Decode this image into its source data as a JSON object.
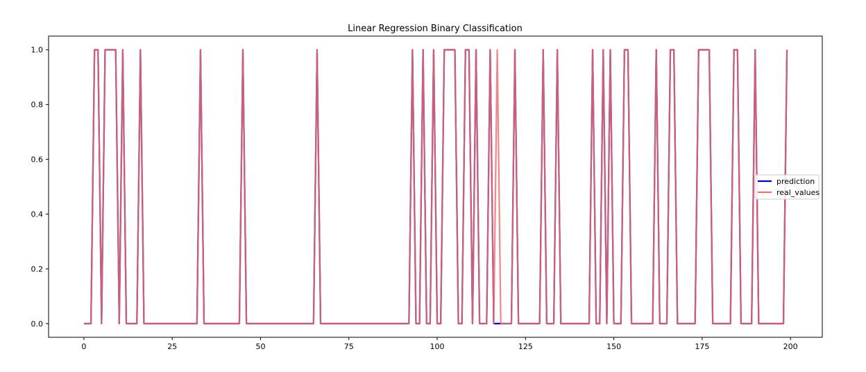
{
  "chart_data": {
    "type": "line",
    "title": "Linear Regression Binary Classification",
    "xlabel": "",
    "ylabel": "",
    "xlim": [
      -10,
      209
    ],
    "ylim": [
      -0.05,
      1.05
    ],
    "xticks": [
      0,
      25,
      50,
      75,
      100,
      125,
      150,
      175,
      200
    ],
    "yticks": [
      0.0,
      0.2,
      0.4,
      0.6,
      0.8,
      1.0
    ],
    "xtick_labels": [
      "0",
      "25",
      "50",
      "75",
      "100",
      "125",
      "150",
      "175",
      "200"
    ],
    "ytick_labels": [
      "0.0",
      "0.2",
      "0.4",
      "0.6",
      "0.8",
      "1.0"
    ],
    "grid": false,
    "legend_position": "center-right",
    "x": [
      0,
      1,
      2,
      3,
      4,
      5,
      6,
      7,
      8,
      9,
      10,
      11,
      12,
      13,
      14,
      15,
      16,
      17,
      18,
      19,
      20,
      21,
      22,
      23,
      24,
      25,
      26,
      27,
      28,
      29,
      30,
      31,
      32,
      33,
      34,
      35,
      36,
      37,
      38,
      39,
      40,
      41,
      42,
      43,
      44,
      45,
      46,
      47,
      48,
      49,
      50,
      51,
      52,
      53,
      54,
      55,
      56,
      57,
      58,
      59,
      60,
      61,
      62,
      63,
      64,
      65,
      66,
      67,
      68,
      69,
      70,
      71,
      72,
      73,
      74,
      75,
      76,
      77,
      78,
      79,
      80,
      81,
      82,
      83,
      84,
      85,
      86,
      87,
      88,
      89,
      90,
      91,
      92,
      93,
      94,
      95,
      96,
      97,
      98,
      99,
      100,
      101,
      102,
      103,
      104,
      105,
      106,
      107,
      108,
      109,
      110,
      111,
      112,
      113,
      114,
      115,
      116,
      117,
      118,
      119,
      120,
      121,
      122,
      123,
      124,
      125,
      126,
      127,
      128,
      129,
      130,
      131,
      132,
      133,
      134,
      135,
      136,
      137,
      138,
      139,
      140,
      141,
      142,
      143,
      144,
      145,
      146,
      147,
      148,
      149,
      150,
      151,
      152,
      153,
      154,
      155,
      156,
      157,
      158,
      159,
      160,
      161,
      162,
      163,
      164,
      165,
      166,
      167,
      168,
      169,
      170,
      171,
      172,
      173,
      174,
      175,
      176,
      177,
      178,
      179,
      180,
      181,
      182,
      183,
      184,
      185,
      186,
      187,
      188,
      189,
      190,
      191,
      192,
      193,
      194,
      195,
      196,
      197,
      198,
      199
    ],
    "series": [
      {
        "name": "prediction",
        "color": "#0000bb",
        "values": [
          0,
          0,
          0,
          1,
          1,
          0,
          1,
          1,
          1,
          1,
          0,
          1,
          0,
          0,
          0,
          0,
          1,
          0,
          0,
          0,
          0,
          0,
          0,
          0,
          0,
          0,
          0,
          0,
          0,
          0,
          0,
          0,
          0,
          1,
          0,
          0,
          0,
          0,
          0,
          0,
          0,
          0,
          0,
          0,
          0,
          1,
          0,
          0,
          0,
          0,
          0,
          0,
          0,
          0,
          0,
          0,
          0,
          0,
          0,
          0,
          0,
          0,
          0,
          0,
          0,
          0,
          1,
          0,
          0,
          0,
          0,
          0,
          0,
          0,
          0,
          0,
          0,
          0,
          0,
          0,
          0,
          0,
          0,
          0,
          0,
          0,
          0,
          0,
          0,
          0,
          0,
          0,
          0,
          1,
          0,
          0,
          1,
          0,
          0,
          1,
          0,
          0,
          1,
          1,
          1,
          1,
          0,
          0,
          1,
          1,
          0,
          1,
          0,
          0,
          0,
          1,
          0,
          0,
          0,
          0,
          0,
          0,
          1,
          0,
          0,
          0,
          0,
          0,
          0,
          0,
          1,
          0,
          0,
          0,
          1,
          0,
          0,
          0,
          0,
          0,
          0,
          0,
          0,
          0,
          1,
          0,
          0,
          1,
          0,
          1,
          0,
          0,
          0,
          1,
          1,
          0,
          0,
          0,
          0,
          0,
          0,
          0,
          1,
          0,
          0,
          0,
          1,
          1,
          0,
          0,
          0,
          0,
          0,
          0,
          1,
          1,
          1,
          1,
          0,
          0,
          0,
          0,
          0,
          0,
          1,
          1,
          0,
          0,
          0,
          0,
          1,
          0,
          0,
          0,
          0,
          0,
          0,
          0,
          0,
          1
        ]
      },
      {
        "name": "real_values",
        "color": "#f07070",
        "values": [
          0,
          0,
          0,
          1,
          1,
          0,
          1,
          1,
          1,
          1,
          0,
          1,
          0,
          0,
          0,
          0,
          1,
          0,
          0,
          0,
          0,
          0,
          0,
          0,
          0,
          0,
          0,
          0,
          0,
          0,
          0,
          0,
          0,
          1,
          0,
          0,
          0,
          0,
          0,
          0,
          0,
          0,
          0,
          0,
          0,
          1,
          0,
          0,
          0,
          0,
          0,
          0,
          0,
          0,
          0,
          0,
          0,
          0,
          0,
          0,
          0,
          0,
          0,
          0,
          0,
          0,
          1,
          0,
          0,
          0,
          0,
          0,
          0,
          0,
          0,
          0,
          0,
          0,
          0,
          0,
          0,
          0,
          0,
          0,
          0,
          0,
          0,
          0,
          0,
          0,
          0,
          0,
          0,
          1,
          0,
          0,
          1,
          0,
          0,
          1,
          0,
          0,
          1,
          1,
          1,
          1,
          0,
          0,
          1,
          1,
          0,
          1,
          0,
          0,
          0,
          1,
          0,
          1,
          0,
          0,
          0,
          0,
          1,
          0,
          0,
          0,
          0,
          0,
          0,
          0,
          1,
          0,
          0,
          0,
          1,
          0,
          0,
          0,
          0,
          0,
          0,
          0,
          0,
          0,
          1,
          0,
          0,
          1,
          0,
          1,
          0,
          0,
          0,
          1,
          1,
          0,
          0,
          0,
          0,
          0,
          0,
          0,
          1,
          0,
          0,
          0,
          1,
          1,
          0,
          0,
          0,
          0,
          0,
          0,
          1,
          1,
          1,
          1,
          0,
          0,
          0,
          0,
          0,
          0,
          1,
          1,
          0,
          0,
          0,
          0,
          1,
          0,
          0,
          0,
          0,
          0,
          0,
          0,
          0,
          1
        ]
      }
    ]
  }
}
